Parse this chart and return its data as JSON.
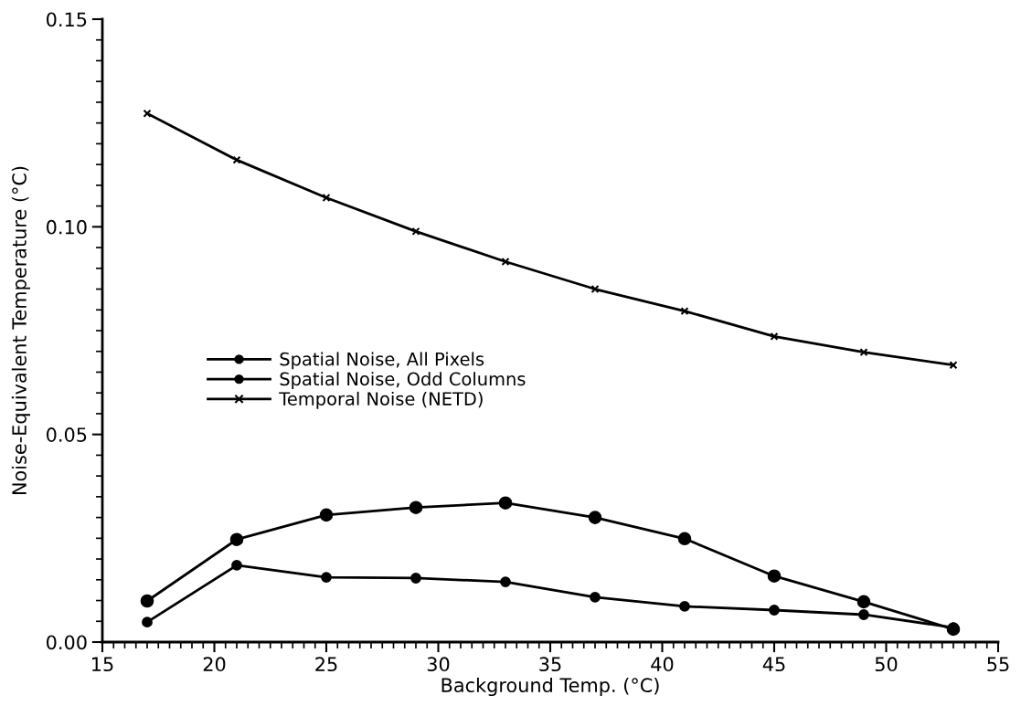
{
  "chart_data": {
    "type": "line",
    "xlabel": "Background Temp. (°C)",
    "ylabel": "Noise-Equivalent Temperature (°C)",
    "x": [
      17,
      21,
      25,
      29,
      33,
      37,
      41,
      45,
      49,
      53
    ],
    "series": [
      {
        "name": "Spatial Noise, All Pixels",
        "color": "#000000",
        "marker": "circle",
        "values": [
          0.0099,
          0.0247,
          0.0306,
          0.0324,
          0.0335,
          0.03,
          0.0249,
          0.0159,
          0.0097,
          0.0031
        ]
      },
      {
        "name": "Spatial Noise, Odd Columns",
        "color": "#000000",
        "marker": "circle",
        "values": [
          0.0048,
          0.0185,
          0.0156,
          0.0154,
          0.0145,
          0.0108,
          0.0086,
          0.0077,
          0.0066,
          0.0035
        ]
      },
      {
        "name": "Temporal Noise (NETD)",
        "color": "#000000",
        "marker": "cross",
        "values": [
          0.1273,
          0.1161,
          0.107,
          0.0989,
          0.0916,
          0.085,
          0.0797,
          0.0736,
          0.0698,
          0.0667
        ]
      }
    ],
    "xlim": [
      15,
      55
    ],
    "ylim": [
      0,
      0.15
    ],
    "xticks": [
      15,
      {
        "value": 15.5,
        "label": null
      },
      {
        "value": 16,
        "label": null
      },
      {
        "value": 16.5,
        "label": null
      },
      {
        "value": 17,
        "label": null
      },
      {
        "value": 17.5,
        "label": null
      },
      {
        "value": 18,
        "label": null
      },
      {
        "value": 18.5,
        "label": null
      },
      {
        "value": 19,
        "label": null
      },
      {
        "value": 19.5,
        "label": null
      },
      20,
      {
        "value": 20.5,
        "label": null
      },
      {
        "value": 21,
        "label": null
      },
      {
        "value": 21.5,
        "label": null
      },
      {
        "value": 22,
        "label": null
      },
      {
        "value": 22.5,
        "label": null
      },
      {
        "value": 23,
        "label": null
      },
      {
        "value": 23.5,
        "label": null
      },
      {
        "value": 24,
        "label": null
      },
      {
        "value": 24.5,
        "label": null
      },
      25,
      {
        "value": 25.5,
        "label": null
      },
      {
        "value": 26,
        "label": null
      },
      {
        "value": 26.5,
        "label": null
      },
      {
        "value": 27,
        "label": null
      },
      {
        "value": 27.5,
        "label": null
      },
      {
        "value": 28,
        "label": null
      },
      {
        "value": 28.5,
        "label": null
      },
      {
        "value": 29,
        "label": null
      },
      {
        "value": 29.5,
        "label": null
      },
      30,
      {
        "value": 30.5,
        "label": null
      },
      {
        "value": 31,
        "label": null
      },
      {
        "value": 31.5,
        "label": null
      },
      {
        "value": 32,
        "label": null
      },
      {
        "value": 32.5,
        "label": null
      },
      {
        "value": 33,
        "label": null
      },
      {
        "value": 33.5,
        "label": null
      },
      {
        "value": 34,
        "label": null
      },
      {
        "value": 34.5,
        "label": null
      },
      35,
      {
        "value": 35.5,
        "label": null
      },
      {
        "value": 36,
        "label": null
      },
      {
        "value": 36.5,
        "label": null
      },
      {
        "value": 37,
        "label": null
      },
      {
        "value": 37.5,
        "label": null
      },
      {
        "value": 38,
        "label": null
      },
      {
        "value": 38.5,
        "label": null
      },
      {
        "value": 39,
        "label": null
      },
      {
        "value": 39.5,
        "label": null
      },
      40,
      {
        "value": 40.5,
        "label": null
      },
      {
        "value": 41,
        "label": null
      },
      {
        "value": 41.5,
        "label": null
      },
      {
        "value": 42,
        "label": null
      },
      {
        "value": 42.5,
        "label": null
      },
      {
        "value": 43,
        "label": null
      },
      {
        "value": 43.5,
        "label": null
      },
      {
        "value": 44,
        "label": null
      },
      {
        "value": 44.5,
        "label": null
      },
      45,
      {
        "value": 45.5,
        "label": null
      },
      {
        "value": 46,
        "label": null
      },
      {
        "value": 46.5,
        "label": null
      },
      {
        "value": 47,
        "label": null
      },
      {
        "value": 47.5,
        "label": null
      },
      {
        "value": 48,
        "label": null
      },
      {
        "value": 48.5,
        "label": null
      },
      {
        "value": 49,
        "label": null
      },
      {
        "value": 49.5,
        "label": null
      },
      50,
      {
        "value": 50.5,
        "label": null
      },
      {
        "value": 51,
        "label": null
      },
      {
        "value": 51.5,
        "label": null
      },
      {
        "value": 52,
        "label": null
      },
      {
        "value": 52.5,
        "label": null
      },
      {
        "value": 53,
        "label": null
      },
      {
        "value": 53.5,
        "label": null
      },
      {
        "value": 54,
        "label": null
      },
      {
        "value": 54.5,
        "label": null
      },
      55
    ],
    "yticks": [
      {
        "value": 0,
        "label": "0.00"
      },
      {
        "value": 0.005,
        "label": null
      },
      {
        "value": 0.01,
        "label": null
      },
      {
        "value": 0.015,
        "label": null
      },
      {
        "value": 0.02,
        "label": null
      },
      {
        "value": 0.025,
        "label": null
      },
      {
        "value": 0.03,
        "label": null
      },
      {
        "value": 0.035,
        "label": null
      },
      {
        "value": 0.04,
        "label": null
      },
      {
        "value": 0.045,
        "label": null
      },
      {
        "value": 0.05,
        "label": "0.05"
      },
      {
        "value": 0.055,
        "label": null
      },
      {
        "value": 0.06,
        "label": null
      },
      {
        "value": 0.065,
        "label": null
      },
      {
        "value": 0.07,
        "label": null
      },
      {
        "value": 0.075,
        "label": null
      },
      {
        "value": 0.08,
        "label": null
      },
      {
        "value": 0.085,
        "label": null
      },
      {
        "value": 0.09,
        "label": null
      },
      {
        "value": 0.095,
        "label": null
      },
      {
        "value": 0.1,
        "label": "0.10"
      },
      {
        "value": 0.105,
        "label": null
      },
      {
        "value": 0.11,
        "label": null
      },
      {
        "value": 0.115,
        "label": null
      },
      {
        "value": 0.12,
        "label": null
      },
      {
        "value": 0.125,
        "label": null
      },
      {
        "value": 0.13,
        "label": null
      },
      {
        "value": 0.135,
        "label": null
      },
      {
        "value": 0.14,
        "label": null
      },
      {
        "value": 0.145,
        "label": null
      },
      {
        "value": 0.15,
        "label": "0.15"
      }
    ],
    "grid": false,
    "legend": "left",
    "line_style": "solid"
  }
}
